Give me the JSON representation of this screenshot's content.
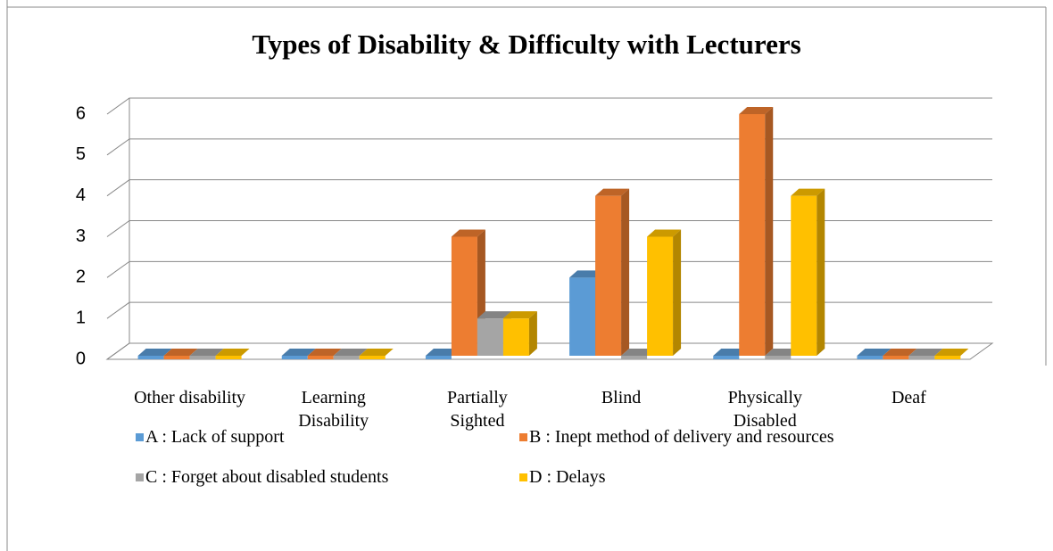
{
  "chart_data": {
    "type": "bar3d",
    "title": "Types of Disability & Difficulty with Lecturers",
    "categories": [
      "Other disability",
      "Learning Disability",
      "Partially Sighted",
      "Blind",
      "Physically Disabled",
      "Deaf"
    ],
    "series": [
      {
        "name": "A : Lack of support",
        "color": "#5b9bd5",
        "values": [
          0,
          0,
          0,
          2,
          0,
          0
        ]
      },
      {
        "name": "B : Inept method of delivery and resources",
        "color": "#ed7d31",
        "values": [
          0,
          0,
          3,
          4,
          6,
          0
        ]
      },
      {
        "name": "C : Forget about disabled students",
        "color": "#a5a5a5",
        "values": [
          0,
          0,
          1,
          0,
          0,
          0
        ]
      },
      {
        "name": "D : Delays",
        "color": "#ffc000",
        "values": [
          0,
          0,
          1,
          3,
          4,
          0
        ]
      }
    ],
    "ylim": [
      0,
      6
    ],
    "yticks": [
      0,
      1,
      2,
      3,
      4,
      5,
      6
    ],
    "grid": true,
    "legend": "bottom"
  }
}
